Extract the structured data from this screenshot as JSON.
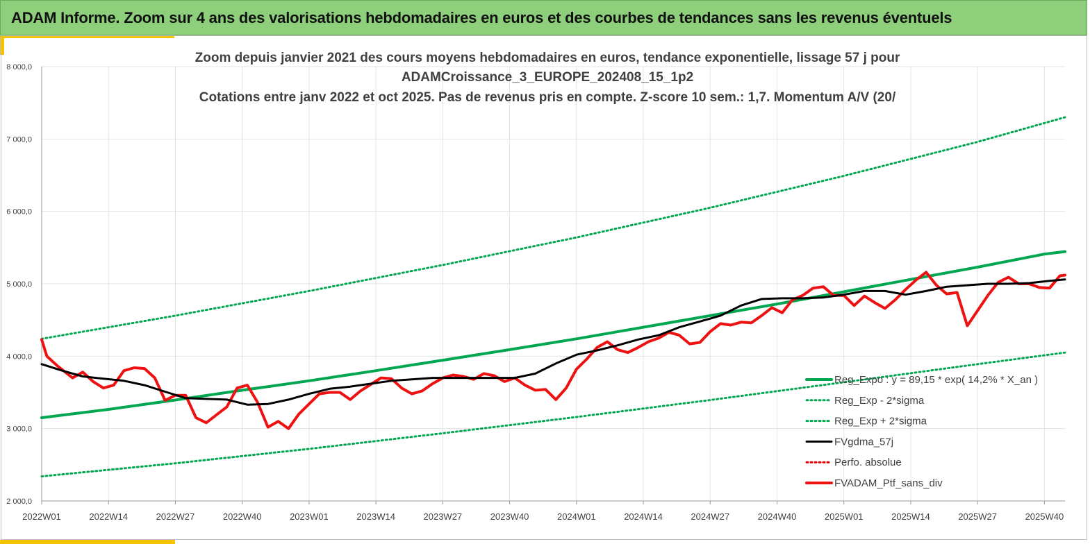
{
  "header": {
    "title": "ADAM Informe. Zoom sur 4 ans des valorisations hebdomadaires en euros et des courbes de tendances sans les revenus éventuels"
  },
  "colors": {
    "header_bg": "#8dcf7b",
    "accent": "#f5c400",
    "trend": "#00a650",
    "sigma": "#00a650",
    "mean": "#000000",
    "perf": "#e00000",
    "portfolio": "#ee1111"
  },
  "chart_data": {
    "type": "line",
    "title_lines": [
      "Zoom depuis janvier 2021 des cours moyens hebdomadaires  en euros, tendance exponentielle, lissage 57 j pour",
      "ADAMCroissance_3_EUROPE_202408_15_1p2",
      "Cotations  entre janv 2022 et oct 2025. Pas de revenus pris en compte. Z-score 10 sem.: 1,7. Momentum A/V (20/"
    ],
    "ylim": [
      2000,
      8000
    ],
    "yticks": [
      2000,
      3000,
      4000,
      5000,
      6000,
      7000,
      8000
    ],
    "ytick_labels": [
      "2 000,0",
      "3 000,0",
      "4 000,0",
      "5 000,0",
      "6 000,0",
      "7 000,0",
      "8 000,0"
    ],
    "xtick_labels": [
      "2022W01",
      "2022W14",
      "2022W27",
      "2022W40",
      "2023W01",
      "2023W14",
      "2023W27",
      "2023W40",
      "2024W01",
      "2024W14",
      "2024W27",
      "2024W40",
      "2025W01",
      "2025W14",
      "2025W27",
      "2025W40"
    ],
    "x_range": [
      0,
      199
    ],
    "x_unit": "weeks since 2022W01",
    "grid": "vertical and horizontal",
    "legend_position": "bottom-right",
    "series": [
      {
        "name": "Reg_Expo : y = 89,15 * exp( 14,2% *  X_an )",
        "style": "solid-thick",
        "color": "#00a650",
        "x": [
          0,
          13,
          26,
          39,
          52,
          65,
          78,
          91,
          104,
          117,
          130,
          143,
          156,
          169,
          182,
          195,
          199
        ],
        "values": [
          3150,
          3265,
          3395,
          3530,
          3660,
          3800,
          3945,
          4090,
          4240,
          4400,
          4560,
          4720,
          4890,
          5060,
          5230,
          5410,
          5445
        ]
      },
      {
        "name": "Reg_Exp - 2*sigma",
        "style": "dotted",
        "color": "#00a650",
        "x": [
          0,
          26,
          52,
          78,
          104,
          130,
          156,
          182,
          199
        ],
        "values": [
          2340,
          2520,
          2720,
          2935,
          3160,
          3395,
          3640,
          3890,
          4050
        ]
      },
      {
        "name": "Reg_Exp + 2*sigma",
        "style": "dotted",
        "color": "#00a650",
        "x": [
          0,
          26,
          52,
          78,
          104,
          130,
          156,
          182,
          199
        ],
        "values": [
          4240,
          4560,
          4900,
          5260,
          5640,
          6050,
          6490,
          6960,
          7300
        ]
      },
      {
        "name": "FVgdma_57j",
        "style": "solid",
        "color": "#000000",
        "x": [
          0,
          4,
          8,
          12,
          16,
          20,
          24,
          28,
          32,
          36,
          40,
          44,
          48,
          52,
          56,
          60,
          64,
          68,
          72,
          76,
          80,
          84,
          88,
          92,
          96,
          100,
          104,
          108,
          112,
          116,
          120,
          124,
          128,
          132,
          136,
          140,
          144,
          148,
          152,
          156,
          160,
          164,
          168,
          172,
          176,
          180,
          184,
          188,
          192,
          196,
          199
        ],
        "values": [
          3890,
          3800,
          3720,
          3690,
          3660,
          3600,
          3510,
          3420,
          3410,
          3400,
          3330,
          3340,
          3400,
          3480,
          3550,
          3580,
          3620,
          3660,
          3680,
          3700,
          3700,
          3700,
          3700,
          3700,
          3760,
          3900,
          4020,
          4080,
          4150,
          4230,
          4290,
          4400,
          4480,
          4560,
          4700,
          4790,
          4800,
          4800,
          4810,
          4850,
          4900,
          4900,
          4850,
          4900,
          4960,
          4980,
          5000,
          5000,
          5010,
          5040,
          5060
        ]
      },
      {
        "name": "Perfo. absolue",
        "style": "dotted",
        "color": "#e00000",
        "x": [],
        "values": []
      },
      {
        "name": "FVADAM_Ptf_sans_div",
        "style": "solid-thick",
        "color": "#ee1111",
        "x": [
          0,
          1,
          3,
          6,
          8,
          10,
          12,
          14,
          16,
          18,
          20,
          22,
          24,
          26,
          28,
          30,
          32,
          34,
          36,
          38,
          40,
          42,
          44,
          46,
          48,
          50,
          52,
          54,
          56,
          58,
          60,
          62,
          64,
          66,
          68,
          70,
          72,
          74,
          76,
          78,
          80,
          82,
          84,
          86,
          88,
          90,
          92,
          94,
          96,
          98,
          100,
          102,
          104,
          106,
          108,
          110,
          112,
          114,
          116,
          118,
          120,
          122,
          124,
          126,
          128,
          130,
          132,
          134,
          136,
          138,
          140,
          142,
          144,
          146,
          148,
          150,
          152,
          154,
          156,
          158,
          160,
          162,
          164,
          166,
          168,
          170,
          172,
          174,
          176,
          178,
          180,
          182,
          184,
          186,
          188,
          190,
          192,
          194,
          196,
          198,
          199
        ],
        "values": [
          4230,
          4000,
          3870,
          3700,
          3780,
          3650,
          3560,
          3600,
          3800,
          3840,
          3830,
          3700,
          3390,
          3460,
          3460,
          3150,
          3080,
          3190,
          3300,
          3560,
          3600,
          3360,
          3020,
          3100,
          3000,
          3200,
          3340,
          3480,
          3500,
          3500,
          3400,
          3520,
          3610,
          3700,
          3690,
          3560,
          3480,
          3520,
          3620,
          3700,
          3740,
          3720,
          3680,
          3760,
          3730,
          3650,
          3700,
          3600,
          3530,
          3540,
          3400,
          3560,
          3820,
          3960,
          4120,
          4200,
          4090,
          4050,
          4120,
          4200,
          4250,
          4330,
          4290,
          4170,
          4190,
          4340,
          4450,
          4430,
          4470,
          4460,
          4560,
          4670,
          4600,
          4780,
          4840,
          4940,
          4960,
          4840,
          4840,
          4700,
          4830,
          4740,
          4660,
          4780,
          4920,
          5050,
          5160,
          4980,
          4860,
          4880,
          4420,
          4630,
          4840,
          5020,
          5090,
          5000,
          5000,
          4950,
          4940,
          5110,
          5120
        ]
      }
    ]
  }
}
